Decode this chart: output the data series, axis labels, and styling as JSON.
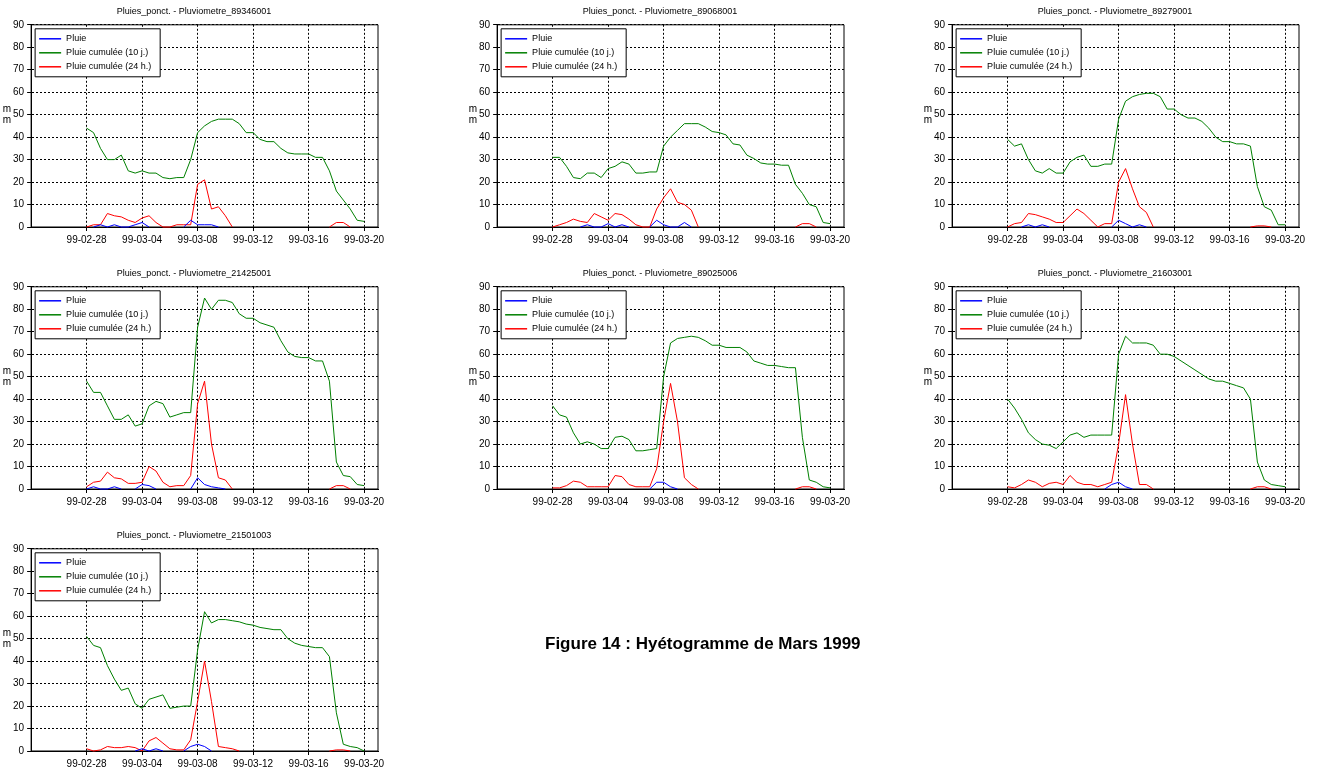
{
  "chart_data": [
    {
      "type": "line",
      "title": "Pluies_ponct. - Pluviometre_89346001",
      "ylabel": "mm",
      "legend": "top left",
      "grid": true,
      "xlim": [
        "1999-02-24",
        "1999-03-21"
      ],
      "ylim": [
        0,
        90
      ],
      "yticks": [
        0,
        10,
        20,
        30,
        40,
        50,
        60,
        70,
        80,
        90
      ],
      "xticks": [
        {
          "value": "1999-02-28",
          "label": "99-02-28"
        },
        {
          "value": "1999-03-04",
          "label": "99-03-04"
        },
        {
          "value": "1999-03-08",
          "label": "99-03-08"
        },
        {
          "value": "1999-03-12",
          "label": "99-03-12"
        },
        {
          "value": "1999-03-16",
          "label": "99-03-16"
        },
        {
          "value": "1999-03-20",
          "label": "99-03-20"
        }
      ],
      "x": [
        "1999-02-28T00:00",
        "1999-02-28T12:00",
        "1999-03-01T00:00",
        "1999-03-01T12:00",
        "1999-03-02T00:00",
        "1999-03-02T12:00",
        "1999-03-03T00:00",
        "1999-03-03T12:00",
        "1999-03-04T00:00",
        "1999-03-04T12:00",
        "1999-03-05T00:00",
        "1999-03-05T12:00",
        "1999-03-06T00:00",
        "1999-03-06T12:00",
        "1999-03-07T00:00",
        "1999-03-07T12:00",
        "1999-03-08T00:00",
        "1999-03-08T12:00",
        "1999-03-09T00:00",
        "1999-03-09T12:00",
        "1999-03-10T00:00",
        "1999-03-10T12:00",
        "1999-03-11T00:00",
        "1999-03-11T12:00",
        "1999-03-12T00:00",
        "1999-03-12T12:00",
        "1999-03-13T00:00",
        "1999-03-13T12:00",
        "1999-03-14T00:00",
        "1999-03-14T12:00",
        "1999-03-15T00:00",
        "1999-03-15T12:00",
        "1999-03-16T00:00",
        "1999-03-16T12:00",
        "1999-03-17T00:00",
        "1999-03-17T12:00",
        "1999-03-18T00:00",
        "1999-03-18T12:00",
        "1999-03-19T00:00",
        "1999-03-19T12:00",
        "1999-03-20T00:00"
      ],
      "series": [
        {
          "name": "Pluie",
          "color": "#0000ff",
          "values": [
            null,
            0,
            1,
            0,
            1,
            0,
            0,
            1,
            2,
            0,
            null,
            null,
            null,
            null,
            0,
            3,
            1,
            1,
            1,
            0,
            null,
            null,
            null,
            null,
            null,
            null,
            null,
            null,
            null,
            null,
            null,
            null,
            null,
            null,
            null,
            null,
            null,
            null,
            null,
            null,
            null
          ]
        },
        {
          "name": "Pluie cumulée (10 j.)",
          "color": "#008000",
          "values": [
            44,
            42,
            35,
            30,
            30,
            32,
            25,
            24,
            25,
            24,
            24,
            22,
            21.5,
            22,
            22,
            30,
            42,
            45,
            47,
            48,
            48,
            48,
            46,
            42,
            42,
            39,
            38,
            38,
            35,
            33,
            32.5,
            32.5,
            32.5,
            31,
            31,
            25,
            16,
            12,
            8,
            3,
            2.5
          ]
        },
        {
          "name": "Pluie cumulée (24 h.)",
          "color": "#ff0000",
          "values": [
            0,
            1,
            1,
            6,
            5,
            4.5,
            3,
            2,
            4,
            5,
            2,
            0,
            0,
            1,
            1,
            1,
            19,
            21,
            8,
            9,
            5,
            0,
            null,
            null,
            null,
            null,
            null,
            null,
            null,
            null,
            null,
            null,
            null,
            null,
            null,
            0,
            2,
            2,
            0,
            null,
            null
          ]
        }
      ]
    },
    {
      "type": "line",
      "title": "Pluies_ponct. - Pluviometre_89068001",
      "ylabel": "mm",
      "legend": "top left",
      "grid": true,
      "xlim": [
        "1999-02-24",
        "1999-03-21"
      ],
      "ylim": [
        0,
        90
      ],
      "yticks": [
        0,
        10,
        20,
        30,
        40,
        50,
        60,
        70,
        80,
        90
      ],
      "xticks": [
        {
          "value": "1999-02-28",
          "label": "99-02-28"
        },
        {
          "value": "1999-03-04",
          "label": "99-03-04"
        },
        {
          "value": "1999-03-08",
          "label": "99-03-08"
        },
        {
          "value": "1999-03-12",
          "label": "99-03-12"
        },
        {
          "value": "1999-03-16",
          "label": "99-03-16"
        },
        {
          "value": "1999-03-20",
          "label": "99-03-20"
        }
      ],
      "x": [
        "1999-02-28T00:00",
        "1999-02-28T12:00",
        "1999-03-01T00:00",
        "1999-03-01T12:00",
        "1999-03-02T00:00",
        "1999-03-02T12:00",
        "1999-03-03T00:00",
        "1999-03-03T12:00",
        "1999-03-04T00:00",
        "1999-03-04T12:00",
        "1999-03-05T00:00",
        "1999-03-05T12:00",
        "1999-03-06T00:00",
        "1999-03-06T12:00",
        "1999-03-07T00:00",
        "1999-03-07T12:00",
        "1999-03-08T00:00",
        "1999-03-08T12:00",
        "1999-03-09T00:00",
        "1999-03-09T12:00",
        "1999-03-10T00:00",
        "1999-03-10T12:00",
        "1999-03-11T00:00",
        "1999-03-11T12:00",
        "1999-03-12T00:00",
        "1999-03-12T12:00",
        "1999-03-13T00:00",
        "1999-03-13T12:00",
        "1999-03-14T00:00",
        "1999-03-14T12:00",
        "1999-03-15T00:00",
        "1999-03-15T12:00",
        "1999-03-16T00:00",
        "1999-03-16T12:00",
        "1999-03-17T00:00",
        "1999-03-17T12:00",
        "1999-03-18T00:00",
        "1999-03-18T12:00",
        "1999-03-19T00:00",
        "1999-03-19T12:00",
        "1999-03-20T00:00"
      ],
      "series": [
        {
          "name": "Pluie",
          "color": "#0000ff",
          "values": [
            null,
            null,
            null,
            null,
            0,
            1,
            0,
            0,
            1.5,
            0,
            1,
            0,
            null,
            null,
            0,
            3,
            1,
            0,
            0,
            2,
            0,
            null,
            null,
            null,
            null,
            null,
            null,
            null,
            null,
            null,
            null,
            null,
            null,
            null,
            null,
            null,
            null,
            null,
            null,
            null,
            null
          ]
        },
        {
          "name": "Pluie cumulée (10 j.)",
          "color": "#008000",
          "values": [
            31,
            31,
            27,
            22,
            21.5,
            24,
            24,
            22,
            26,
            27,
            29,
            28,
            24,
            24,
            24.5,
            24.5,
            36,
            40,
            43,
            46,
            46,
            46,
            44.5,
            42.5,
            42,
            41,
            37,
            36.5,
            32,
            30.5,
            28.5,
            28,
            28,
            27.5,
            27.5,
            19,
            15,
            10,
            9,
            2,
            1.5
          ]
        },
        {
          "name": "Pluie cumulée (24 h.)",
          "color": "#ff0000",
          "values": [
            0,
            1,
            2,
            3.5,
            2.5,
            2,
            6,
            4.5,
            3,
            6,
            5.5,
            3.5,
            1,
            0,
            0,
            8,
            13,
            17,
            11,
            10,
            7.5,
            0,
            null,
            null,
            null,
            null,
            null,
            null,
            null,
            null,
            null,
            null,
            null,
            null,
            null,
            0,
            1.5,
            1.5,
            0,
            null,
            null
          ]
        }
      ]
    },
    {
      "type": "line",
      "title": "Pluies_ponct. - Pluviometre_89279001",
      "ylabel": "mm",
      "legend": "top left",
      "grid": true,
      "xlim": [
        "1999-02-24",
        "1999-03-21"
      ],
      "ylim": [
        0,
        90
      ],
      "yticks": [
        0,
        10,
        20,
        30,
        40,
        50,
        60,
        70,
        80,
        90
      ],
      "xticks": [
        {
          "value": "1999-02-28",
          "label": "99-02-28"
        },
        {
          "value": "1999-03-04",
          "label": "99-03-04"
        },
        {
          "value": "1999-03-08",
          "label": "99-03-08"
        },
        {
          "value": "1999-03-12",
          "label": "99-03-12"
        },
        {
          "value": "1999-03-16",
          "label": "99-03-16"
        },
        {
          "value": "1999-03-20",
          "label": "99-03-20"
        }
      ],
      "x": [
        "1999-02-28T00:00",
        "1999-02-28T12:00",
        "1999-03-01T00:00",
        "1999-03-01T12:00",
        "1999-03-02T00:00",
        "1999-03-02T12:00",
        "1999-03-03T00:00",
        "1999-03-03T12:00",
        "1999-03-04T00:00",
        "1999-03-04T12:00",
        "1999-03-05T00:00",
        "1999-03-05T12:00",
        "1999-03-06T00:00",
        "1999-03-06T12:00",
        "1999-03-07T00:00",
        "1999-03-07T12:00",
        "1999-03-08T00:00",
        "1999-03-08T12:00",
        "1999-03-09T00:00",
        "1999-03-09T12:00",
        "1999-03-10T00:00",
        "1999-03-10T12:00",
        "1999-03-11T00:00",
        "1999-03-11T12:00",
        "1999-03-12T00:00",
        "1999-03-12T12:00",
        "1999-03-13T00:00",
        "1999-03-13T12:00",
        "1999-03-14T00:00",
        "1999-03-14T12:00",
        "1999-03-15T00:00",
        "1999-03-15T12:00",
        "1999-03-16T00:00",
        "1999-03-16T12:00",
        "1999-03-17T00:00",
        "1999-03-17T12:00",
        "1999-03-18T00:00",
        "1999-03-18T12:00",
        "1999-03-19T00:00",
        "1999-03-19T12:00",
        "1999-03-20T00:00"
      ],
      "series": [
        {
          "name": "Pluie",
          "color": "#0000ff",
          "values": [
            null,
            null,
            0,
            1,
            0,
            1,
            0,
            null,
            null,
            null,
            null,
            null,
            null,
            null,
            null,
            0,
            3,
            1.5,
            0,
            1,
            0,
            null,
            null,
            null,
            null,
            null,
            null,
            null,
            null,
            null,
            null,
            null,
            null,
            null,
            null,
            null,
            null,
            null,
            null,
            null,
            null
          ]
        },
        {
          "name": "Pluie cumulée (10 j.)",
          "color": "#008000",
          "values": [
            39,
            36,
            37,
            30,
            25,
            24,
            26,
            24,
            24,
            29,
            31,
            32,
            27,
            27,
            28,
            28,
            48,
            56,
            58,
            59,
            59.5,
            59.5,
            58,
            52.5,
            52.5,
            50,
            48.5,
            48.5,
            47,
            44,
            40,
            38,
            38,
            37,
            37,
            36,
            18,
            9,
            7.5,
            1,
            1
          ]
        },
        {
          "name": "Pluie cumulée (24 h.)",
          "color": "#ff0000",
          "values": [
            0,
            1.5,
            2,
            6,
            5.5,
            4.5,
            3.5,
            2,
            2,
            5,
            8,
            6,
            3,
            0,
            1.5,
            1.5,
            20,
            26,
            17,
            9,
            6.5,
            0,
            null,
            null,
            null,
            null,
            null,
            null,
            null,
            null,
            null,
            null,
            null,
            null,
            null,
            0,
            0.5,
            0.5,
            0,
            null,
            null
          ]
        }
      ]
    },
    {
      "type": "line",
      "title": "Pluies_ponct. - Pluviometre_21425001",
      "ylabel": "mm",
      "legend": "top left",
      "grid": true,
      "xlim": [
        "1999-02-24",
        "1999-03-21"
      ],
      "ylim": [
        0,
        90
      ],
      "yticks": [
        0,
        10,
        20,
        30,
        40,
        50,
        60,
        70,
        80,
        90
      ],
      "xticks": [
        {
          "value": "1999-02-28",
          "label": "99-02-28"
        },
        {
          "value": "1999-03-04",
          "label": "99-03-04"
        },
        {
          "value": "1999-03-08",
          "label": "99-03-08"
        },
        {
          "value": "1999-03-12",
          "label": "99-03-12"
        },
        {
          "value": "1999-03-16",
          "label": "99-03-16"
        },
        {
          "value": "1999-03-20",
          "label": "99-03-20"
        }
      ],
      "x": [
        "1999-02-28T00:00",
        "1999-02-28T12:00",
        "1999-03-01T00:00",
        "1999-03-01T12:00",
        "1999-03-02T00:00",
        "1999-03-02T12:00",
        "1999-03-03T00:00",
        "1999-03-03T12:00",
        "1999-03-04T00:00",
        "1999-03-04T12:00",
        "1999-03-05T00:00",
        "1999-03-05T12:00",
        "1999-03-06T00:00",
        "1999-03-06T12:00",
        "1999-03-07T00:00",
        "1999-03-07T12:00",
        "1999-03-08T00:00",
        "1999-03-08T12:00",
        "1999-03-09T00:00",
        "1999-03-09T12:00",
        "1999-03-10T00:00",
        "1999-03-10T12:00",
        "1999-03-11T00:00",
        "1999-03-11T12:00",
        "1999-03-12T00:00",
        "1999-03-12T12:00",
        "1999-03-13T00:00",
        "1999-03-13T12:00",
        "1999-03-14T00:00",
        "1999-03-14T12:00",
        "1999-03-15T00:00",
        "1999-03-15T12:00",
        "1999-03-16T00:00",
        "1999-03-16T12:00",
        "1999-03-17T00:00",
        "1999-03-17T12:00",
        "1999-03-18T00:00",
        "1999-03-18T12:00",
        "1999-03-19T00:00",
        "1999-03-19T12:00",
        "1999-03-20T00:00"
      ],
      "series": [
        {
          "name": "Pluie",
          "color": "#0000ff",
          "values": [
            0,
            1,
            0,
            0,
            1,
            0,
            null,
            0,
            2,
            1.5,
            0,
            null,
            null,
            null,
            null,
            0,
            5,
            2,
            1,
            0.5,
            0,
            null,
            null,
            null,
            null,
            null,
            null,
            null,
            null,
            null,
            null,
            null,
            null,
            null,
            null,
            null,
            null,
            null,
            null,
            null,
            null
          ]
        },
        {
          "name": "Pluie cumulée (10 j.)",
          "color": "#008000",
          "values": [
            48,
            43,
            43,
            37,
            31,
            31,
            33,
            28,
            29,
            37,
            39,
            38,
            32,
            33,
            34,
            34,
            72,
            85,
            80,
            84,
            84,
            83,
            78,
            76,
            76,
            74,
            73,
            72,
            66,
            61,
            59,
            58.5,
            58.5,
            57,
            57,
            48,
            12,
            6,
            5.5,
            2,
            1.5
          ]
        },
        {
          "name": "Pluie cumulée (24 h.)",
          "color": "#ff0000",
          "values": [
            1,
            3,
            3.5,
            7.5,
            5,
            4.5,
            2.5,
            2.5,
            3,
            10,
            8,
            3,
            1,
            1.5,
            1.5,
            6,
            38,
            48,
            20,
            5,
            4,
            0,
            null,
            null,
            null,
            null,
            null,
            null,
            null,
            null,
            null,
            null,
            null,
            null,
            null,
            0,
            1.5,
            1.5,
            0,
            null,
            null
          ]
        }
      ]
    },
    {
      "type": "line",
      "title": "Pluies_ponct. - Pluviometre_89025006",
      "ylabel": "mm",
      "legend": "top left",
      "grid": true,
      "xlim": [
        "1999-02-24",
        "1999-03-21"
      ],
      "ylim": [
        0,
        90
      ],
      "yticks": [
        0,
        10,
        20,
        30,
        40,
        50,
        60,
        70,
        80,
        90
      ],
      "xticks": [
        {
          "value": "1999-02-28",
          "label": "99-02-28"
        },
        {
          "value": "1999-03-04",
          "label": "99-03-04"
        },
        {
          "value": "1999-03-08",
          "label": "99-03-08"
        },
        {
          "value": "1999-03-12",
          "label": "99-03-12"
        },
        {
          "value": "1999-03-16",
          "label": "99-03-16"
        },
        {
          "value": "1999-03-20",
          "label": "99-03-20"
        }
      ],
      "x": [
        "1999-02-28T00:00",
        "1999-02-28T12:00",
        "1999-03-01T00:00",
        "1999-03-01T12:00",
        "1999-03-02T00:00",
        "1999-03-02T12:00",
        "1999-03-03T00:00",
        "1999-03-03T12:00",
        "1999-03-04T00:00",
        "1999-03-04T12:00",
        "1999-03-05T00:00",
        "1999-03-05T12:00",
        "1999-03-06T00:00",
        "1999-03-06T12:00",
        "1999-03-07T00:00",
        "1999-03-07T12:00",
        "1999-03-08T00:00",
        "1999-03-08T12:00",
        "1999-03-09T00:00",
        "1999-03-09T12:00",
        "1999-03-10T00:00",
        "1999-03-10T12:00",
        "1999-03-11T00:00",
        "1999-03-11T12:00",
        "1999-03-12T00:00",
        "1999-03-12T12:00",
        "1999-03-13T00:00",
        "1999-03-13T12:00",
        "1999-03-14T00:00",
        "1999-03-14T12:00",
        "1999-03-15T00:00",
        "1999-03-15T12:00",
        "1999-03-16T00:00",
        "1999-03-16T12:00",
        "1999-03-17T00:00",
        "1999-03-17T12:00",
        "1999-03-18T00:00",
        "1999-03-18T12:00",
        "1999-03-19T00:00",
        "1999-03-19T12:00",
        "1999-03-20T00:00"
      ],
      "series": [
        {
          "name": "Pluie",
          "color": "#0000ff",
          "values": [
            null,
            null,
            null,
            null,
            null,
            null,
            null,
            null,
            null,
            null,
            null,
            null,
            null,
            null,
            0,
            3,
            3,
            1,
            0,
            null,
            null,
            null,
            null,
            null,
            null,
            null,
            null,
            null,
            null,
            null,
            null,
            null,
            null,
            null,
            null,
            null,
            null,
            null,
            null,
            null,
            null
          ]
        },
        {
          "name": "Pluie cumulée (10 j.)",
          "color": "#008000",
          "values": [
            37,
            33,
            32,
            25,
            20,
            21,
            20,
            18,
            18,
            23,
            23.5,
            22,
            17,
            17,
            17.5,
            18,
            50,
            65,
            67,
            67.5,
            68,
            67.5,
            66,
            64,
            64,
            63,
            63,
            63,
            61,
            57,
            56,
            55,
            55,
            54.5,
            54,
            54,
            23,
            4,
            3,
            1,
            0.5
          ]
        },
        {
          "name": "Pluie cumulée (24 h.)",
          "color": "#ff0000",
          "values": [
            0.5,
            0.5,
            1.5,
            3.5,
            3,
            1,
            1,
            1,
            1,
            6,
            5.5,
            2,
            1,
            1,
            1,
            9,
            30,
            47,
            30,
            5,
            2,
            0,
            null,
            null,
            null,
            null,
            null,
            null,
            null,
            null,
            null,
            null,
            null,
            null,
            null,
            0,
            1,
            1,
            0,
            null,
            null
          ]
        }
      ]
    },
    {
      "type": "line",
      "title": "Pluies_ponct. - Pluviometre_21603001",
      "ylabel": "mm",
      "legend": "top left",
      "grid": true,
      "xlim": [
        "1999-02-24",
        "1999-03-21"
      ],
      "ylim": [
        0,
        90
      ],
      "yticks": [
        0,
        10,
        20,
        30,
        40,
        50,
        60,
        70,
        80,
        90
      ],
      "xticks": [
        {
          "value": "1999-02-28",
          "label": "99-02-28"
        },
        {
          "value": "1999-03-04",
          "label": "99-03-04"
        },
        {
          "value": "1999-03-08",
          "label": "99-03-08"
        },
        {
          "value": "1999-03-12",
          "label": "99-03-12"
        },
        {
          "value": "1999-03-16",
          "label": "99-03-16"
        },
        {
          "value": "1999-03-20",
          "label": "99-03-20"
        }
      ],
      "x": [
        "1999-02-28T00:00",
        "1999-02-28T12:00",
        "1999-03-01T00:00",
        "1999-03-01T12:00",
        "1999-03-02T00:00",
        "1999-03-02T12:00",
        "1999-03-03T00:00",
        "1999-03-03T12:00",
        "1999-03-04T00:00",
        "1999-03-04T12:00",
        "1999-03-05T00:00",
        "1999-03-05T12:00",
        "1999-03-06T00:00",
        "1999-03-06T12:00",
        "1999-03-07T00:00",
        "1999-03-07T12:00",
        "1999-03-08T00:00",
        "1999-03-08T12:00",
        "1999-03-09T00:00",
        "1999-03-09T12:00",
        "1999-03-10T00:00",
        "1999-03-10T12:00",
        "1999-03-11T00:00",
        "1999-03-11T12:00",
        "1999-03-12T00:00",
        "1999-03-12T12:00",
        "1999-03-13T00:00",
        "1999-03-13T12:00",
        "1999-03-14T00:00",
        "1999-03-14T12:00",
        "1999-03-15T00:00",
        "1999-03-15T12:00",
        "1999-03-16T00:00",
        "1999-03-16T12:00",
        "1999-03-17T00:00",
        "1999-03-17T12:00",
        "1999-03-18T00:00",
        "1999-03-18T12:00",
        "1999-03-19T00:00",
        "1999-03-19T12:00",
        "1999-03-20T00:00"
      ],
      "series": [
        {
          "name": "Pluie",
          "color": "#0000ff",
          "values": [
            null,
            null,
            null,
            null,
            null,
            null,
            null,
            null,
            null,
            null,
            null,
            null,
            null,
            null,
            0,
            2,
            3,
            1,
            0,
            null,
            null,
            null,
            null,
            null,
            null,
            null,
            null,
            null,
            null,
            null,
            null,
            null,
            null,
            null,
            null,
            null,
            null,
            null,
            null,
            null,
            null
          ]
        },
        {
          "name": "Pluie cumulée (10 j.)",
          "color": "#008000",
          "values": [
            40,
            36,
            31,
            25,
            22,
            20,
            19.5,
            18,
            21,
            24,
            25,
            23,
            24,
            24,
            24,
            24,
            60,
            68,
            65,
            65,
            65,
            64,
            60,
            60,
            59,
            57,
            55,
            53,
            51,
            49,
            48,
            48,
            47,
            46,
            45,
            40,
            12,
            4,
            2,
            1.5,
            1
          ]
        },
        {
          "name": "Pluie cumulée (24 h.)",
          "color": "#ff0000",
          "values": [
            1,
            0.5,
            2,
            4,
            3,
            1,
            2.5,
            3,
            2,
            6,
            3,
            2,
            2,
            1,
            2,
            3,
            20,
            42,
            20,
            2,
            2,
            0,
            null,
            null,
            null,
            null,
            null,
            null,
            null,
            null,
            null,
            null,
            null,
            null,
            null,
            0,
            1,
            1,
            0,
            null,
            null
          ]
        }
      ]
    },
    {
      "type": "line",
      "title": "Pluies_ponct. - Pluviometre_21501003",
      "ylabel": "mm",
      "legend": "top left",
      "grid": true,
      "xlim": [
        "1999-02-24",
        "1999-03-21"
      ],
      "ylim": [
        0,
        90
      ],
      "yticks": [
        0,
        10,
        20,
        30,
        40,
        50,
        60,
        70,
        80,
        90
      ],
      "xticks": [
        {
          "value": "1999-02-28",
          "label": "99-02-28"
        },
        {
          "value": "1999-03-04",
          "label": "99-03-04"
        },
        {
          "value": "1999-03-08",
          "label": "99-03-08"
        },
        {
          "value": "1999-03-12",
          "label": "99-03-12"
        },
        {
          "value": "1999-03-16",
          "label": "99-03-16"
        },
        {
          "value": "1999-03-20",
          "label": "99-03-20"
        }
      ],
      "x": [
        "1999-02-28T00:00",
        "1999-02-28T12:00",
        "1999-03-01T00:00",
        "1999-03-01T12:00",
        "1999-03-02T00:00",
        "1999-03-02T12:00",
        "1999-03-03T00:00",
        "1999-03-03T12:00",
        "1999-03-04T00:00",
        "1999-03-04T12:00",
        "1999-03-05T00:00",
        "1999-03-05T12:00",
        "1999-03-06T00:00",
        "1999-03-06T12:00",
        "1999-03-07T00:00",
        "1999-03-07T12:00",
        "1999-03-08T00:00",
        "1999-03-08T12:00",
        "1999-03-09T00:00",
        "1999-03-09T12:00",
        "1999-03-10T00:00",
        "1999-03-10T12:00",
        "1999-03-11T00:00",
        "1999-03-11T12:00",
        "1999-03-12T00:00",
        "1999-03-12T12:00",
        "1999-03-13T00:00",
        "1999-03-13T12:00",
        "1999-03-14T00:00",
        "1999-03-14T12:00",
        "1999-03-15T00:00",
        "1999-03-15T12:00",
        "1999-03-16T00:00",
        "1999-03-16T12:00",
        "1999-03-17T00:00",
        "1999-03-17T12:00",
        "1999-03-18T00:00",
        "1999-03-18T12:00",
        "1999-03-19T00:00",
        "1999-03-19T12:00",
        "1999-03-20T00:00"
      ],
      "annotations": [
        "Figure 14 : Hyétogramme de Mars 1999"
      ],
      "series": [
        {
          "name": "Pluie",
          "color": "#0000ff",
          "values": [
            null,
            null,
            null,
            null,
            null,
            null,
            null,
            0,
            1,
            0,
            1,
            0,
            null,
            null,
            0,
            2,
            3,
            2,
            0,
            null,
            null,
            null,
            null,
            null,
            null,
            null,
            null,
            null,
            null,
            null,
            null,
            null,
            null,
            null,
            null,
            null,
            null,
            null,
            null,
            null,
            null
          ]
        },
        {
          "name": "Pluie cumulée (10 j.)",
          "color": "#008000",
          "values": [
            51,
            47,
            46,
            38,
            32,
            27,
            28,
            21,
            19,
            23,
            24,
            25,
            19,
            19.5,
            20,
            20,
            45,
            62,
            57,
            58.5,
            58.5,
            58,
            57.5,
            56.5,
            56,
            55,
            54.5,
            54,
            54,
            50,
            48,
            47,
            46.5,
            46,
            46,
            42,
            17,
            3,
            2,
            1.5,
            0
          ]
        },
        {
          "name": "Pluie cumulée (24 h.)",
          "color": "#ff0000",
          "values": [
            1,
            0,
            0.5,
            2,
            1.5,
            1.5,
            2,
            1.5,
            0,
            4.5,
            6,
            3.5,
            1,
            0.5,
            0.5,
            5,
            22,
            40,
            22,
            2,
            1.5,
            1,
            0,
            null,
            null,
            null,
            null,
            null,
            null,
            null,
            null,
            null,
            null,
            null,
            null,
            0,
            0.5,
            0.5,
            0,
            null,
            null
          ]
        }
      ]
    }
  ]
}
